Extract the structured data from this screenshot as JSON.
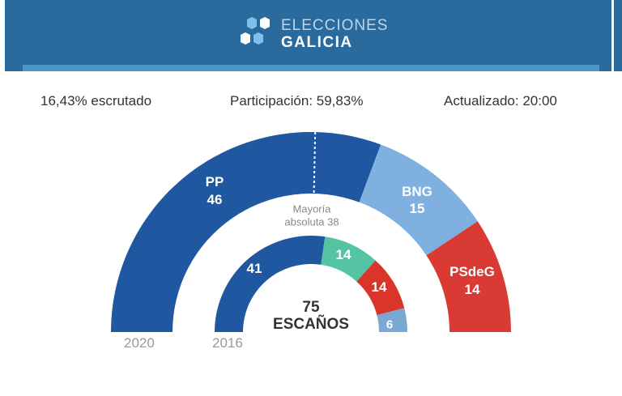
{
  "header": {
    "title_line1": "ELECCIONES",
    "title_line2": "GALICIA"
  },
  "stats": {
    "scrutinized": "16,43% escrutado",
    "turnout": "Participación: 59,83%",
    "updated": "Actualizado: 20:00"
  },
  "chart_data": {
    "type": "pie",
    "subtype": "hemicycle",
    "total_seats": 75,
    "center_value": "75",
    "center_label": "ESCAÑOS",
    "majority_label_1": "Mayoría",
    "majority_label_2": "absoluta 38",
    "majority": 38,
    "rings": [
      {
        "year": "2020",
        "segments": [
          {
            "name": "PP",
            "seats": 46,
            "color": "#1f57a0"
          },
          {
            "name": "BNG",
            "seats": 15,
            "color": "#7fb0e0"
          },
          {
            "name": "PSdeG",
            "seats": 14,
            "color": "#d93a34"
          }
        ]
      },
      {
        "year": "2016",
        "segments": [
          {
            "seats": 41,
            "color": "#1f57a0"
          },
          {
            "seats": 14,
            "color": "#55c4a4"
          },
          {
            "seats": 14,
            "color": "#d9352a"
          },
          {
            "seats": 6,
            "color": "#7aa8d4"
          }
        ]
      }
    ]
  }
}
